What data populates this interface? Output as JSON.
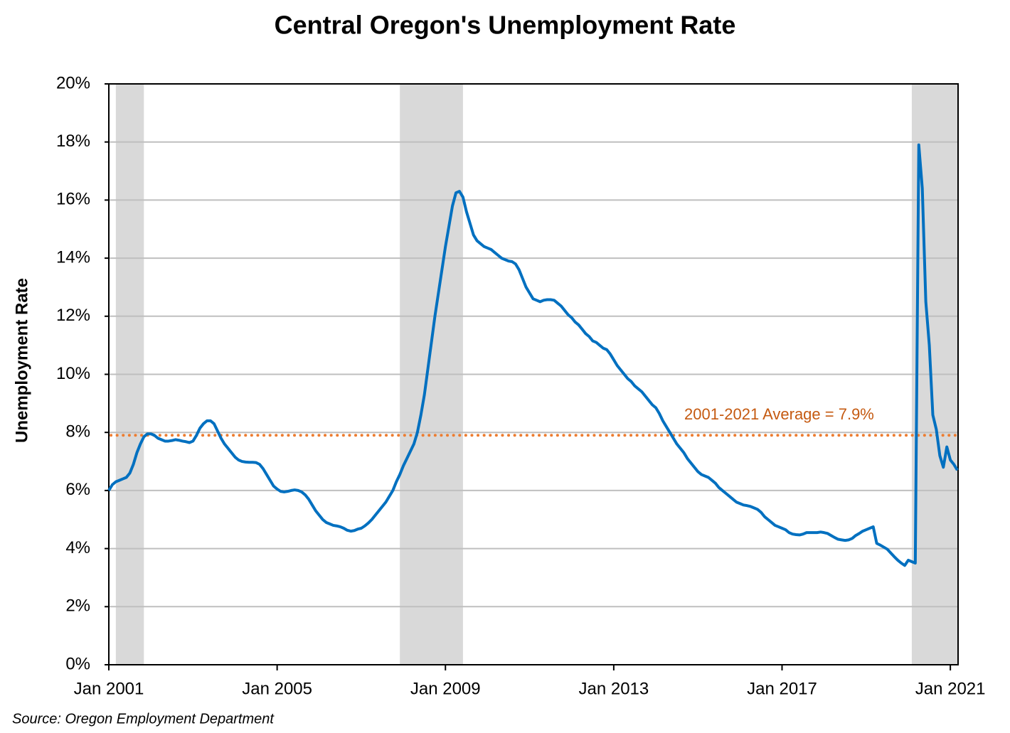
{
  "chart_data": {
    "type": "line",
    "title": "Central Oregon's Unemployment Rate",
    "y_label": "Unemployment Rate",
    "source": "Source: Oregon Employment Department",
    "color": "#0070c0",
    "x": [
      "2001-01",
      "2001-02",
      "2001-03",
      "2001-04",
      "2001-05",
      "2001-06",
      "2001-07",
      "2001-08",
      "2001-09",
      "2001-10",
      "2001-11",
      "2001-12",
      "2002-01",
      "2002-02",
      "2002-03",
      "2002-04",
      "2002-05",
      "2002-06",
      "2002-07",
      "2002-08",
      "2002-09",
      "2002-10",
      "2002-11",
      "2002-12",
      "2003-01",
      "2003-02",
      "2003-03",
      "2003-04",
      "2003-05",
      "2003-06",
      "2003-07",
      "2003-08",
      "2003-09",
      "2003-10",
      "2003-11",
      "2003-12",
      "2004-01",
      "2004-02",
      "2004-03",
      "2004-04",
      "2004-05",
      "2004-06",
      "2004-07",
      "2004-08",
      "2004-09",
      "2004-10",
      "2004-11",
      "2004-12",
      "2005-01",
      "2005-02",
      "2005-03",
      "2005-04",
      "2005-05",
      "2005-06",
      "2005-07",
      "2005-08",
      "2005-09",
      "2005-10",
      "2005-11",
      "2005-12",
      "2006-01",
      "2006-02",
      "2006-03",
      "2006-04",
      "2006-05",
      "2006-06",
      "2006-07",
      "2006-08",
      "2006-09",
      "2006-10",
      "2006-11",
      "2006-12",
      "2007-01",
      "2007-02",
      "2007-03",
      "2007-04",
      "2007-05",
      "2007-06",
      "2007-07",
      "2007-08",
      "2007-09",
      "2007-10",
      "2007-11",
      "2007-12",
      "2008-01",
      "2008-02",
      "2008-03",
      "2008-04",
      "2008-05",
      "2008-06",
      "2008-07",
      "2008-08",
      "2008-09",
      "2008-10",
      "2008-11",
      "2008-12",
      "2009-01",
      "2009-02",
      "2009-03",
      "2009-04",
      "2009-05",
      "2009-06",
      "2009-07",
      "2009-08",
      "2009-09",
      "2009-10",
      "2009-11",
      "2009-12",
      "2010-01",
      "2010-02",
      "2010-03",
      "2010-04",
      "2010-05",
      "2010-06",
      "2010-07",
      "2010-08",
      "2010-09",
      "2010-10",
      "2010-11",
      "2010-12",
      "2011-01",
      "2011-02",
      "2011-03",
      "2011-04",
      "2011-05",
      "2011-06",
      "2011-07",
      "2011-08",
      "2011-09",
      "2011-10",
      "2011-11",
      "2011-12",
      "2012-01",
      "2012-02",
      "2012-03",
      "2012-04",
      "2012-05",
      "2012-06",
      "2012-07",
      "2012-08",
      "2012-09",
      "2012-10",
      "2012-11",
      "2012-12",
      "2013-01",
      "2013-02",
      "2013-03",
      "2013-04",
      "2013-05",
      "2013-06",
      "2013-07",
      "2013-08",
      "2013-09",
      "2013-10",
      "2013-11",
      "2013-12",
      "2014-01",
      "2014-02",
      "2014-03",
      "2014-04",
      "2014-05",
      "2014-06",
      "2014-07",
      "2014-08",
      "2014-09",
      "2014-10",
      "2014-11",
      "2014-12",
      "2015-01",
      "2015-02",
      "2015-03",
      "2015-04",
      "2015-05",
      "2015-06",
      "2015-07",
      "2015-08",
      "2015-09",
      "2015-10",
      "2015-11",
      "2015-12",
      "2016-01",
      "2016-02",
      "2016-03",
      "2016-04",
      "2016-05",
      "2016-06",
      "2016-07",
      "2016-08",
      "2016-09",
      "2016-10",
      "2016-11",
      "2016-12",
      "2017-01",
      "2017-02",
      "2017-03",
      "2017-04",
      "2017-05",
      "2017-06",
      "2017-07",
      "2017-08",
      "2017-09",
      "2017-10",
      "2017-11",
      "2017-12",
      "2018-01",
      "2018-02",
      "2018-03",
      "2018-04",
      "2018-05",
      "2018-06",
      "2018-07",
      "2018-08",
      "2018-09",
      "2018-10",
      "2018-11",
      "2018-12",
      "2019-01",
      "2019-02",
      "2019-03",
      "2019-04",
      "2019-05",
      "2019-06",
      "2019-07",
      "2019-08",
      "2019-09",
      "2019-10",
      "2019-11",
      "2019-12",
      "2020-01",
      "2020-02",
      "2020-03",
      "2020-04",
      "2020-05",
      "2020-06",
      "2020-07",
      "2020-08",
      "2020-09",
      "2020-10",
      "2020-11",
      "2020-12",
      "2021-01",
      "2021-02",
      "2021-03"
    ],
    "values": [
      6.0,
      6.2,
      6.3,
      6.35,
      6.4,
      6.45,
      6.6,
      6.9,
      7.3,
      7.6,
      7.85,
      7.95,
      7.95,
      7.9,
      7.8,
      7.75,
      7.7,
      7.7,
      7.72,
      7.75,
      7.73,
      7.7,
      7.68,
      7.65,
      7.7,
      7.9,
      8.15,
      8.3,
      8.4,
      8.4,
      8.3,
      8.05,
      7.8,
      7.6,
      7.45,
      7.3,
      7.15,
      7.05,
      7.0,
      6.98,
      6.97,
      6.97,
      6.96,
      6.9,
      6.75,
      6.55,
      6.35,
      6.15,
      6.05,
      5.97,
      5.95,
      5.97,
      6.0,
      6.02,
      6.0,
      5.95,
      5.85,
      5.7,
      5.5,
      5.3,
      5.15,
      5.0,
      4.9,
      4.85,
      4.8,
      4.78,
      4.75,
      4.7,
      4.63,
      4.6,
      4.62,
      4.67,
      4.7,
      4.78,
      4.88,
      5.0,
      5.15,
      5.3,
      5.45,
      5.6,
      5.8,
      6.0,
      6.3,
      6.55,
      6.85,
      7.1,
      7.35,
      7.6,
      8.0,
      8.6,
      9.3,
      10.2,
      11.1,
      12.0,
      12.8,
      13.6,
      14.4,
      15.1,
      15.8,
      16.25,
      16.3,
      16.1,
      15.6,
      15.2,
      14.8,
      14.6,
      14.5,
      14.4,
      14.35,
      14.3,
      14.2,
      14.1,
      14.0,
      13.95,
      13.9,
      13.88,
      13.8,
      13.6,
      13.3,
      13.0,
      12.8,
      12.6,
      12.55,
      12.5,
      12.55,
      12.57,
      12.57,
      12.55,
      12.45,
      12.35,
      12.2,
      12.05,
      11.95,
      11.8,
      11.7,
      11.55,
      11.4,
      11.3,
      11.15,
      11.1,
      11.0,
      10.9,
      10.85,
      10.7,
      10.5,
      10.3,
      10.15,
      10.0,
      9.85,
      9.75,
      9.6,
      9.5,
      9.4,
      9.25,
      9.1,
      8.95,
      8.85,
      8.65,
      8.4,
      8.2,
      8.0,
      7.8,
      7.6,
      7.45,
      7.3,
      7.1,
      6.95,
      6.8,
      6.65,
      6.55,
      6.5,
      6.45,
      6.35,
      6.25,
      6.1,
      6.0,
      5.9,
      5.8,
      5.7,
      5.6,
      5.55,
      5.5,
      5.48,
      5.45,
      5.4,
      5.35,
      5.25,
      5.1,
      5.0,
      4.9,
      4.8,
      4.75,
      4.7,
      4.65,
      4.55,
      4.5,
      4.48,
      4.47,
      4.5,
      4.55,
      4.55,
      4.55,
      4.55,
      4.57,
      4.55,
      4.52,
      4.45,
      4.38,
      4.32,
      4.3,
      4.28,
      4.3,
      4.35,
      4.45,
      4.52,
      4.6,
      4.65,
      4.7,
      4.75,
      4.18,
      4.12,
      4.05,
      3.98,
      3.85,
      3.72,
      3.6,
      3.5,
      3.42,
      3.6,
      3.55,
      3.5,
      17.9,
      16.4,
      12.5,
      11.0,
      8.6,
      8.1,
      7.2,
      6.8,
      7.5,
      7.05,
      6.9,
      6.7
    ],
    "xlim": [
      "2001-01",
      "2021-03"
    ],
    "xticks": [
      {
        "value": "2001-01",
        "label": "Jan 2001"
      },
      {
        "value": "2005-01",
        "label": "Jan 2005"
      },
      {
        "value": "2009-01",
        "label": "Jan 2009"
      },
      {
        "value": "2013-01",
        "label": "Jan 2013"
      },
      {
        "value": "2017-01",
        "label": "Jan 2017"
      },
      {
        "value": "2021-01",
        "label": "Jan 2021"
      }
    ],
    "ylim": [
      0,
      20
    ],
    "yticks": [
      {
        "value": 0,
        "label": "0%"
      },
      {
        "value": 2,
        "label": "2%"
      },
      {
        "value": 4,
        "label": "4%"
      },
      {
        "value": 6,
        "label": "6%"
      },
      {
        "value": 8,
        "label": "8%"
      },
      {
        "value": 10,
        "label": "10%"
      },
      {
        "value": 12,
        "label": "12%"
      },
      {
        "value": 14,
        "label": "14%"
      },
      {
        "value": 16,
        "label": "16%"
      },
      {
        "value": 18,
        "label": "18%"
      },
      {
        "value": 20,
        "label": "20%"
      }
    ],
    "grid": true,
    "shaded_periods": [
      [
        "2001-03",
        "2001-11"
      ],
      [
        "2007-12",
        "2009-06"
      ],
      [
        "2020-02",
        "2021-03"
      ]
    ],
    "shade_color": "#d9d9d9",
    "reference_line": {
      "value": 7.9,
      "label": "2001-2021 Average = 7.9%",
      "color": "#ed7d31",
      "label_color": "#c55a11"
    }
  }
}
